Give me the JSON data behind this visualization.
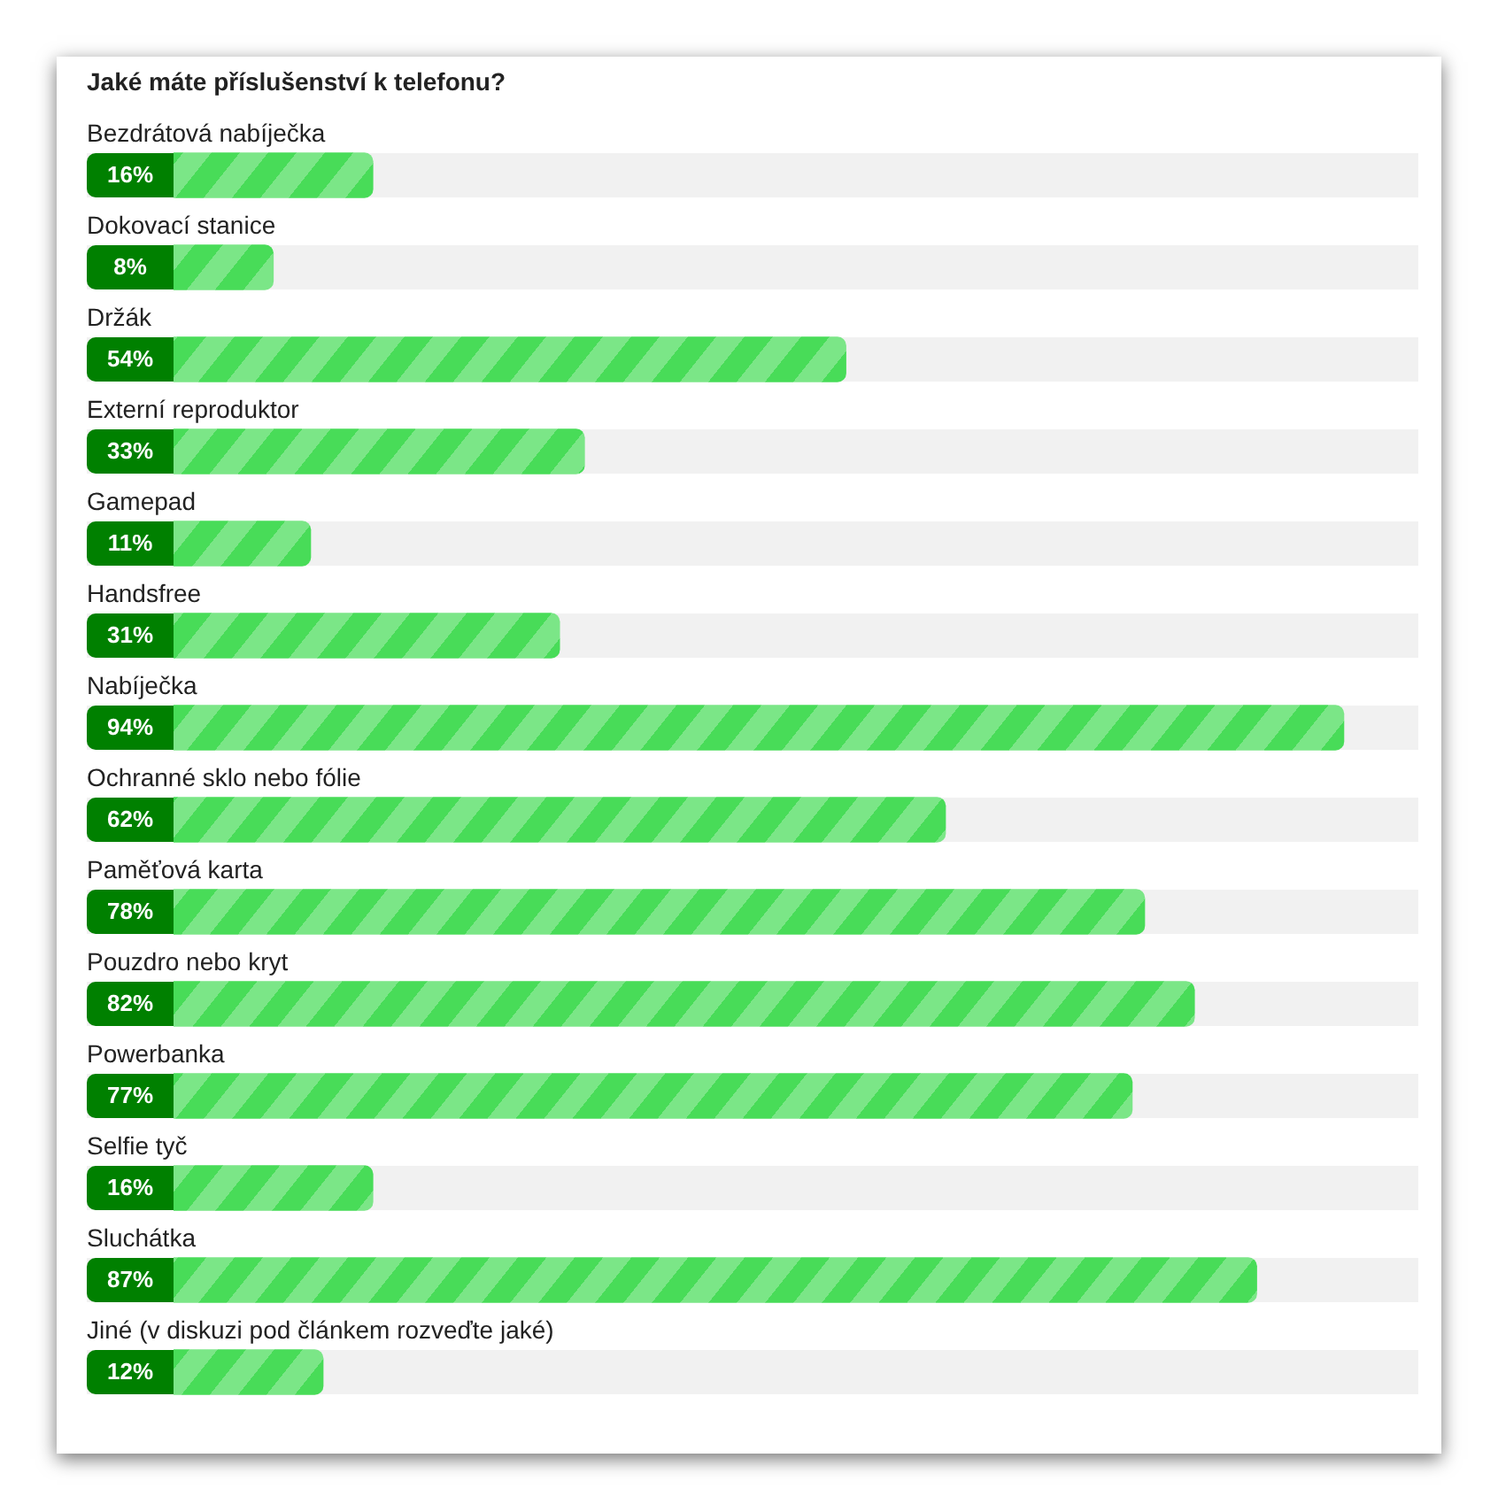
{
  "chart_data": {
    "type": "bar",
    "orientation": "horizontal",
    "title": "Jaké máte příslušenství k telefonu?",
    "categories": [
      "Bezdrátová nabíječka",
      "Dokovací stanice",
      "Držák",
      "Externí reproduktor",
      "Gamepad",
      "Handsfree",
      "Nabíječka",
      "Ochranné sklo nebo fólie",
      "Paměťová karta",
      "Pouzdro nebo kryt",
      "Powerbanka",
      "Selfie tyč",
      "Sluchátka",
      "Jiné (v diskuzi pod článkem rozveďte jaké)"
    ],
    "values": [
      16,
      8,
      54,
      33,
      11,
      31,
      94,
      62,
      78,
      82,
      77,
      16,
      87,
      12
    ],
    "value_labels": [
      "16%",
      "8%",
      "54%",
      "33%",
      "11%",
      "31%",
      "94%",
      "62%",
      "78%",
      "82%",
      "77%",
      "16%",
      "87%",
      "12%"
    ],
    "color": "#48dc58"
  }
}
